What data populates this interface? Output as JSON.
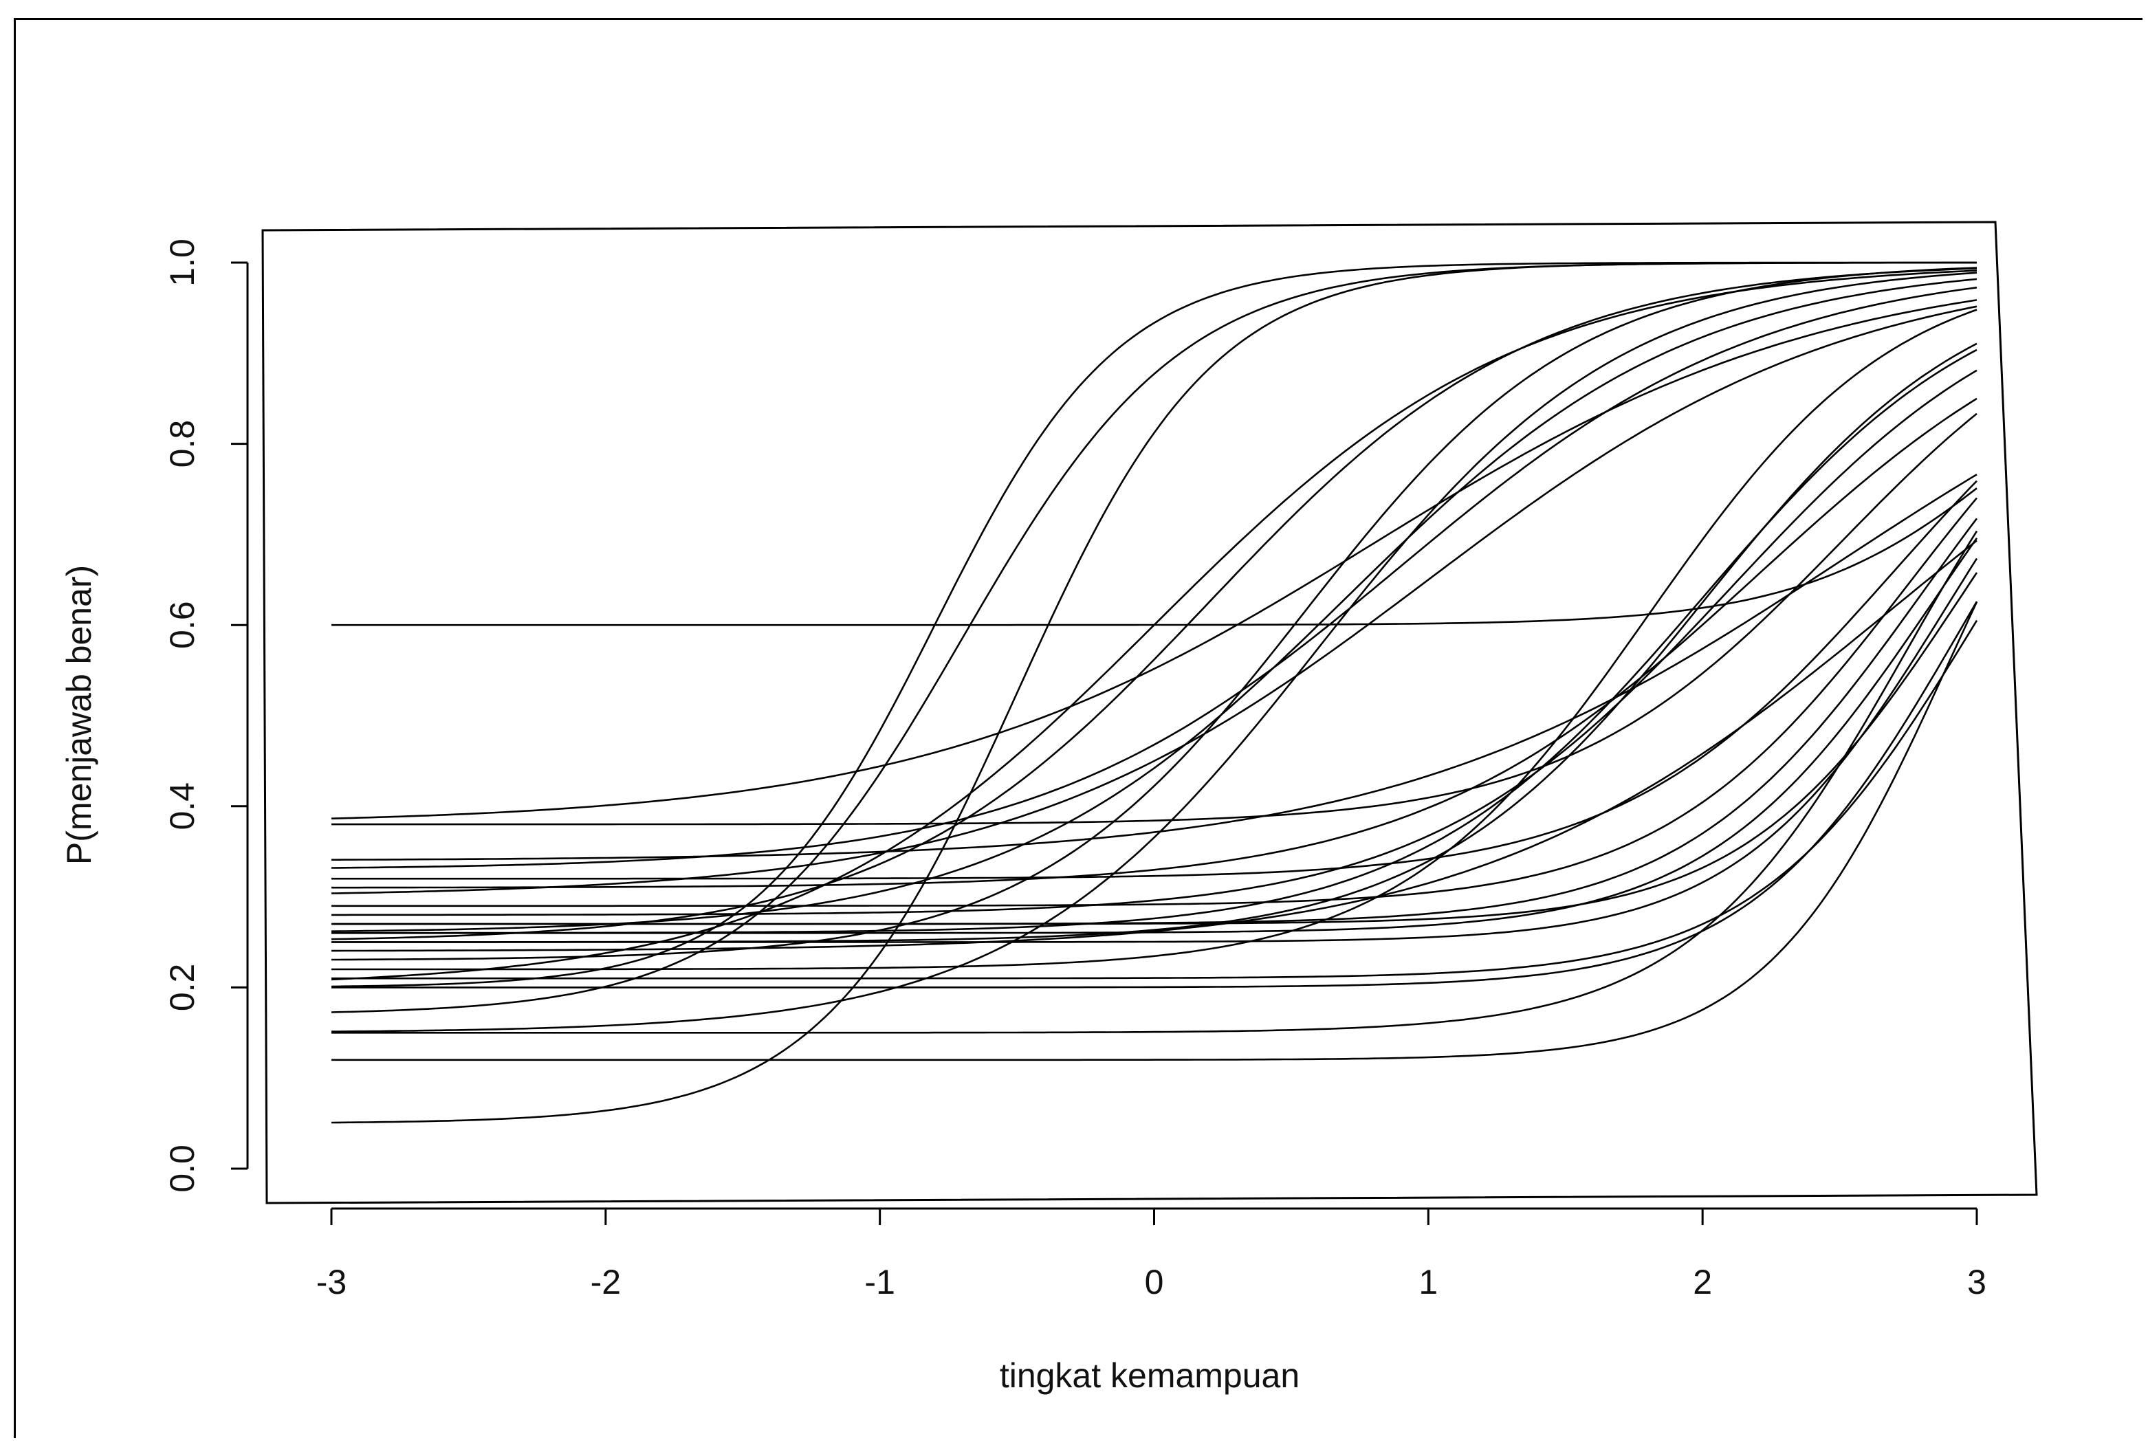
{
  "chart_data": {
    "type": "line",
    "title": "",
    "xlabel": "tingkat kemampuan",
    "ylabel": "P(menjawab benar)",
    "xlim": [
      -3,
      3
    ],
    "ylim": [
      0,
      1
    ],
    "x_ticks": [
      "-3",
      "-2",
      "-1",
      "0",
      "1",
      "2",
      "3"
    ],
    "y_ticks": [
      "0.0",
      "0.2",
      "0.4",
      "0.6",
      "0.8",
      "1.0"
    ],
    "grid": false,
    "legend": "none",
    "curve_model": "3PL item characteristic curves: P = c + (1 - c) / (1 + exp(-a (theta - b)))",
    "series": [
      {
        "a": 3.0,
        "b": -0.8,
        "c": 0.2
      },
      {
        "a": 2.5,
        "b": -0.7,
        "c": 0.17
      },
      {
        "a": 1.5,
        "b": 0.0,
        "c": 0.2
      },
      {
        "a": 1.7,
        "b": 0.2,
        "c": 0.25
      },
      {
        "a": 2.8,
        "b": -0.5,
        "c": 0.05
      },
      {
        "a": 1.8,
        "b": 0.6,
        "c": 0.15
      },
      {
        "a": 2.0,
        "b": 0.55,
        "c": 0.23
      },
      {
        "a": 1.6,
        "b": 0.7,
        "c": 0.26
      },
      {
        "a": 1.5,
        "b": 0.9,
        "c": 0.33
      },
      {
        "a": 1.3,
        "b": 1.0,
        "c": 0.3
      },
      {
        "a": 1.2,
        "b": 0.8,
        "c": 0.38
      },
      {
        "a": 2.2,
        "b": 1.8,
        "c": 0.22
      },
      {
        "a": 2.0,
        "b": 2.0,
        "c": 0.25
      },
      {
        "a": 1.8,
        "b": 2.1,
        "c": 0.28
      },
      {
        "a": 1.6,
        "b": 2.2,
        "c": 0.31
      },
      {
        "a": 1.9,
        "b": 2.0,
        "c": 0.26
      },
      {
        "a": 1.2,
        "b": 2.5,
        "c": 0.34
      },
      {
        "a": 1.3,
        "b": 2.7,
        "c": 0.24
      },
      {
        "a": 2.5,
        "b": 3.2,
        "c": 0.6
      },
      {
        "a": 2.4,
        "b": 2.85,
        "c": 0.26
      },
      {
        "a": 2.6,
        "b": 2.9,
        "c": 0.25
      },
      {
        "a": 2.3,
        "b": 2.8,
        "c": 0.27
      },
      {
        "a": 2.5,
        "b": 3.0,
        "c": 0.21
      },
      {
        "a": 2.6,
        "b": 2.95,
        "c": 0.2
      },
      {
        "a": 2.2,
        "b": 2.75,
        "c": 0.29
      },
      {
        "a": 2.0,
        "b": 2.7,
        "c": 0.32
      },
      {
        "a": 2.5,
        "b": 2.75,
        "c": 0.15
      },
      {
        "a": 3.0,
        "b": 2.9,
        "c": 0.12
      },
      {
        "a": 2.0,
        "b": 2.5,
        "c": 0.38
      },
      {
        "a": 2.5,
        "b": 2.95,
        "c": 0.27
      }
    ]
  }
}
